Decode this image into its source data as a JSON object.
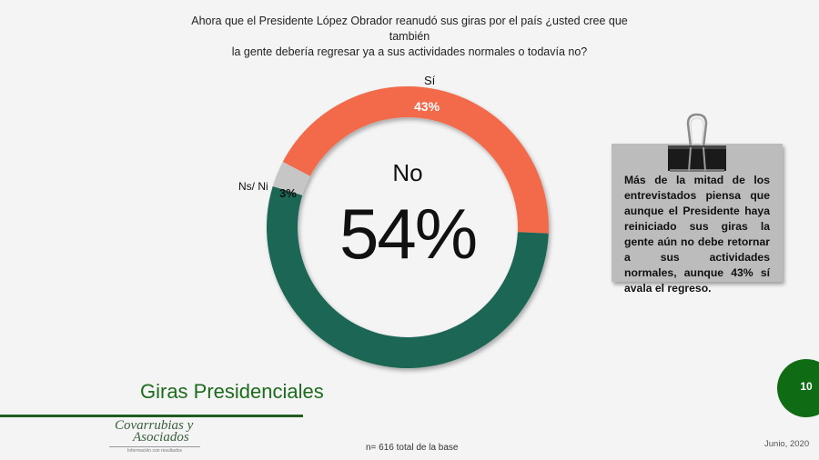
{
  "question": {
    "line1": "Ahora que el Presidente López Obrador reanudó sus giras por el país ¿usted cree que también",
    "line2": "la gente debería regresar ya a sus actividades normales o todavía no?"
  },
  "chart_data": {
    "type": "pie",
    "subtype": "donut",
    "title": "Ahora que el Presidente López Obrador reanudó sus giras por el país ¿usted cree que también la gente debería regresar ya a sus actividades normales o todavía no?",
    "categories": [
      "Sí",
      "Ns/ Ni",
      "No"
    ],
    "values": [
      43,
      3,
      54
    ],
    "unit": "%",
    "colors": [
      "#f26b4a",
      "#c6c6c6",
      "#1f6654"
    ],
    "labels": [
      "43%",
      "3%",
      "54%"
    ],
    "center": {
      "label": "No",
      "value": "54%"
    },
    "legend": "none"
  },
  "labels": {
    "si_name": "Sí",
    "si_value": "43%",
    "ns_name": "Ns/ Ni",
    "ns_value": "3%",
    "center_label": "No",
    "center_value": "54%"
  },
  "note": {
    "text": "Más de la mitad de los entrevistados piensa que aunque el Presidente haya reiniciado sus giras la gente aún no debe retornar a sus actividades normales, aunque 43% sí avala el regreso.",
    "icon": "binder-clip-icon"
  },
  "footer": {
    "section_title": "Giras Presidenciales",
    "logo_line1": "Covarrubias y",
    "logo_line2": "Asociados",
    "logo_tagline": "Información con resultados",
    "base": "n= 616 total de la base",
    "date": "Junio, 2020",
    "page_number": "10"
  },
  "colors": {
    "accent_green": "#1d6b1d",
    "page_badge": "#0f6b14",
    "note_bg": "#bcbcbc"
  }
}
